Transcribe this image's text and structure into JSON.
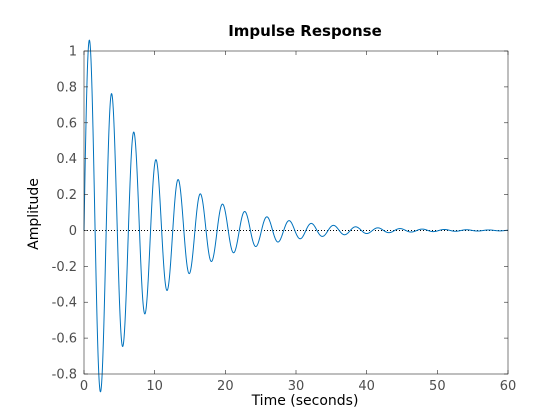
{
  "chart_data": {
    "type": "line",
    "title": "Impulse Response",
    "xlabel": "Time (seconds)",
    "ylabel": "Amplitude",
    "xlim": [
      0,
      60
    ],
    "ylim": [
      -0.8,
      1
    ],
    "x_ticks": [
      0,
      10,
      20,
      30,
      40,
      50,
      60
    ],
    "y_ticks": [
      -0.8,
      -0.6,
      -0.4,
      -0.2,
      0,
      0.2,
      0.4,
      0.6,
      0.8,
      1
    ],
    "x_tick_labels": [
      "0",
      "10",
      "20",
      "30",
      "40",
      "50",
      "60"
    ],
    "y_tick_labels": [
      "-0.8",
      "-0.6",
      "-0.4",
      "-0.2",
      "0",
      "0.2",
      "0.4",
      "0.6",
      "0.8",
      "1"
    ],
    "grid": false,
    "legend": "none",
    "reference_line": {
      "y": 0,
      "style": "dotted",
      "color": "#000000"
    },
    "series": [
      {
        "color": "#0072bd",
        "model": "damped_sine",
        "amplitude": 1.15,
        "decay_rate": 0.105,
        "period": 3.14,
        "x_start": 0,
        "x_end": 60,
        "points": [
          {
            "x": 0.8,
            "y": 0.93
          },
          {
            "x": 2.4,
            "y": -0.81
          },
          {
            "x": 3.9,
            "y": 0.67
          },
          {
            "x": 5.5,
            "y": -0.57
          },
          {
            "x": 7.0,
            "y": 0.49
          },
          {
            "x": 8.6,
            "y": -0.42
          },
          {
            "x": 10.2,
            "y": 0.36
          },
          {
            "x": 11.7,
            "y": -0.3
          },
          {
            "x": 13.3,
            "y": 0.26
          },
          {
            "x": 14.9,
            "y": -0.22
          },
          {
            "x": 16.4,
            "y": 0.19
          },
          {
            "x": 18.0,
            "y": -0.16
          },
          {
            "x": 19.6,
            "y": 0.14
          },
          {
            "x": 21.1,
            "y": -0.12
          },
          {
            "x": 22.7,
            "y": 0.1
          },
          {
            "x": 24.3,
            "y": -0.08
          },
          {
            "x": 25.8,
            "y": 0.07
          },
          {
            "x": 29.0,
            "y": 0.05
          },
          {
            "x": 35.2,
            "y": 0.03
          },
          {
            "x": 41.5,
            "y": 0.015
          },
          {
            "x": 50.9,
            "y": 0.006
          },
          {
            "x": 60.0,
            "y": 0.0
          }
        ]
      }
    ]
  }
}
